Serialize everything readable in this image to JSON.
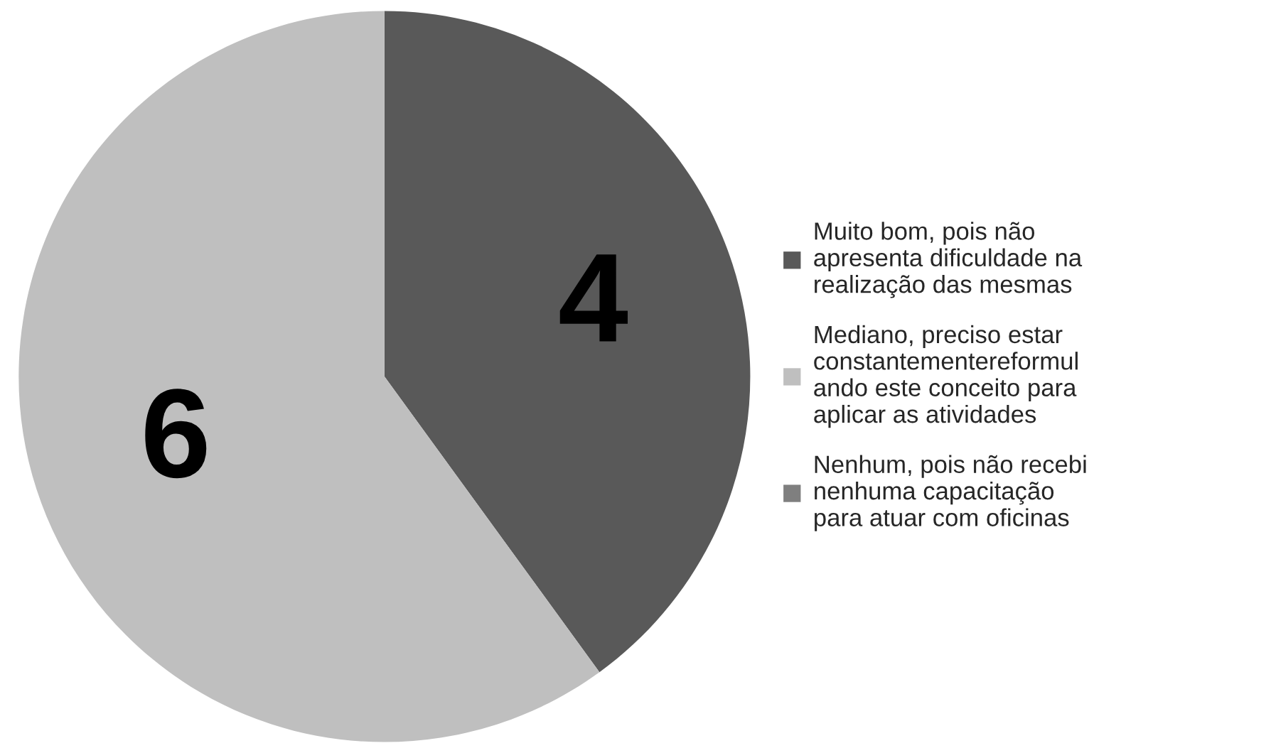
{
  "chart_data": {
    "type": "pie",
    "categories": [
      "Muito bom, pois não\napresenta dificuldade na\nrealização das mesmas",
      "Mediano, preciso estar\nconstantementereformul\nando este conceito para\naplicar as atividades",
      "Nenhum, pois não recebi\nnenhuma capacitação\npara atuar com oficinas"
    ],
    "values": [
      4,
      6,
      0
    ],
    "colors": [
      "#595959",
      "#bfbfbf",
      "#7f7f7f"
    ],
    "value_labels": [
      "4",
      "6",
      null
    ],
    "legend": "right"
  }
}
